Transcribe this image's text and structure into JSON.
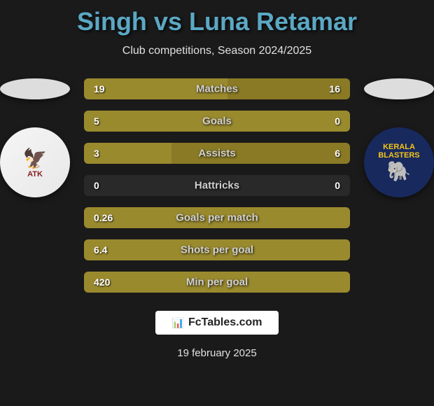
{
  "title": "Singh vs Luna Retamar",
  "subtitle": "Club competitions, Season 2024/2025",
  "colors": {
    "background": "#1a1a1a",
    "title": "#5ba8c4",
    "bar_left": "#9a8a2e",
    "bar_right": "#8a7a25",
    "text": "#e0e0e0"
  },
  "player_left": {
    "name": "Singh",
    "team_badge": {
      "label": "ATK",
      "bg": "#f5f5f5",
      "accent": "#8b2020"
    }
  },
  "player_right": {
    "name": "Luna Retamar",
    "team_badge": {
      "label": "KERALA BLASTERS",
      "bg": "#18295e",
      "accent": "#f5c518"
    }
  },
  "stats": [
    {
      "label": "Matches",
      "left_val": "19",
      "right_val": "16",
      "left_pct": 54,
      "right_pct": 46
    },
    {
      "label": "Goals",
      "left_val": "5",
      "right_val": "0",
      "left_pct": 100,
      "right_pct": 0
    },
    {
      "label": "Assists",
      "left_val": "3",
      "right_val": "6",
      "left_pct": 33,
      "right_pct": 67
    },
    {
      "label": "Hattricks",
      "left_val": "0",
      "right_val": "0",
      "left_pct": 0,
      "right_pct": 0
    },
    {
      "label": "Goals per match",
      "left_val": "0.26",
      "right_val": "",
      "left_pct": 100,
      "right_pct": 0
    },
    {
      "label": "Shots per goal",
      "left_val": "6.4",
      "right_val": "",
      "left_pct": 100,
      "right_pct": 0
    },
    {
      "label": "Min per goal",
      "left_val": "420",
      "right_val": "",
      "left_pct": 100,
      "right_pct": 0
    }
  ],
  "footer": {
    "brand": "FcTables.com",
    "date": "19 february 2025"
  }
}
